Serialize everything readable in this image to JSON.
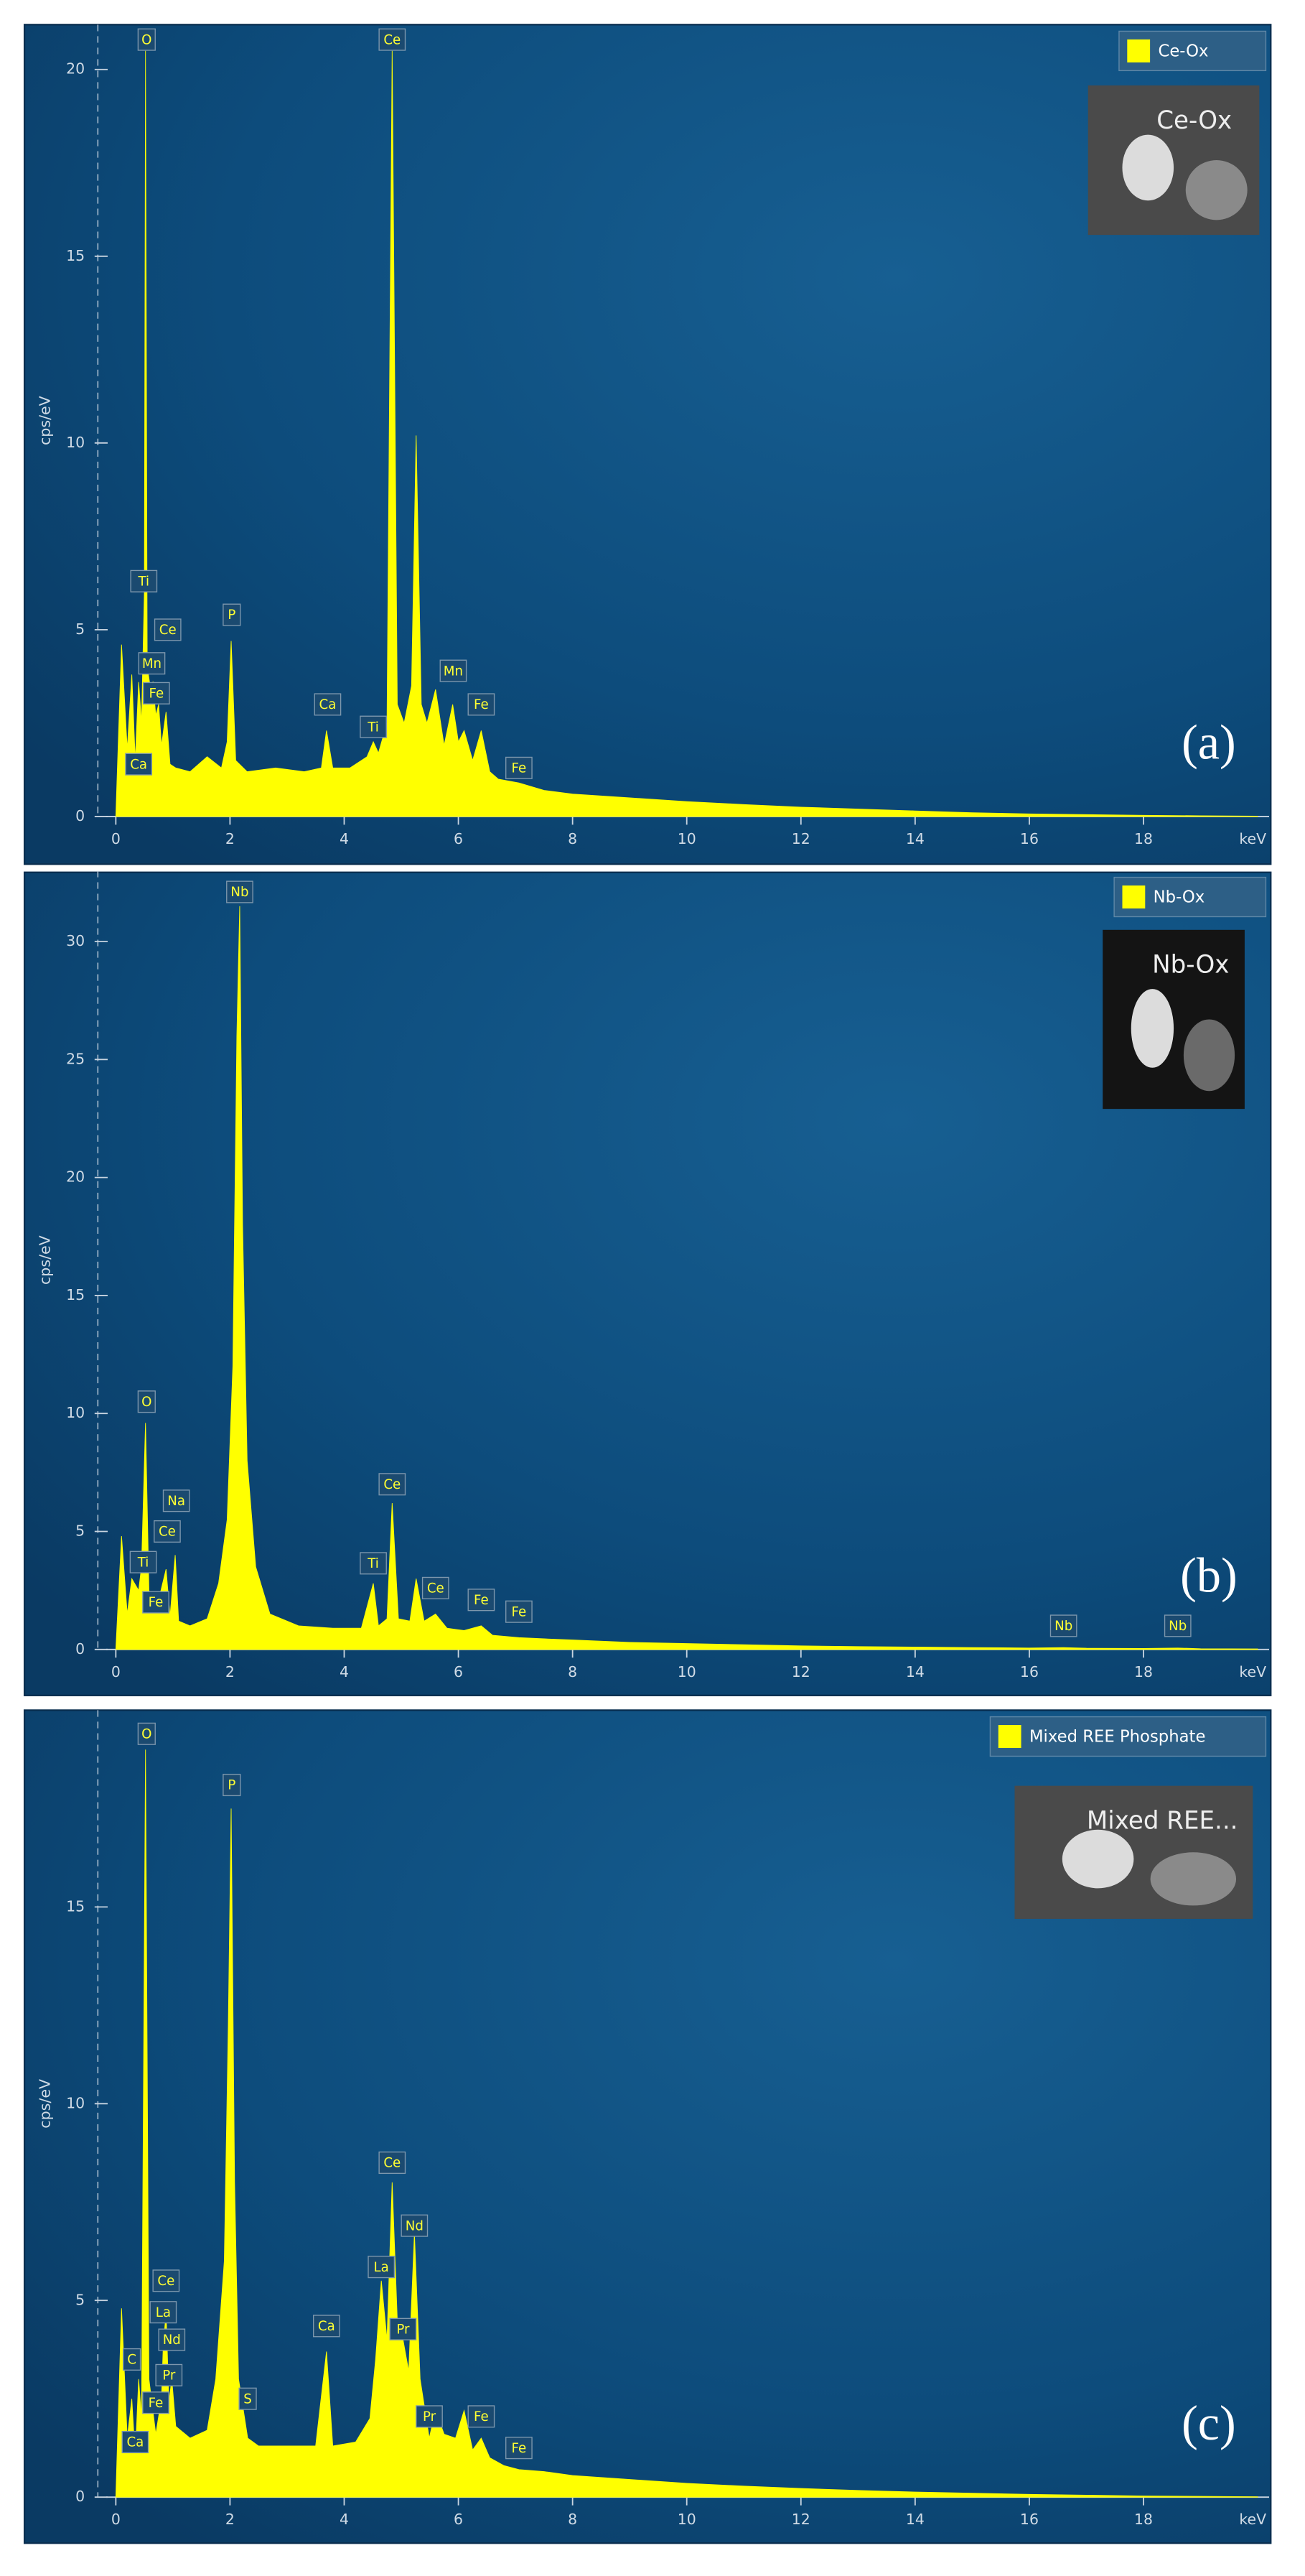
{
  "chart_data": [
    {
      "type": "area",
      "panel_label": "(a)",
      "y_label": "cps/eV",
      "x_label": "keV",
      "inset_label": "Ce-Ox",
      "xlim": [
        0,
        20
      ],
      "ylim": [
        0,
        21.2
      ],
      "xticks": [
        0,
        2,
        4,
        6,
        8,
        10,
        12,
        14,
        16,
        18
      ],
      "yticks": [
        0,
        5,
        10,
        15,
        20
      ],
      "x": [
        0,
        0.1,
        0.2,
        0.28,
        0.34,
        0.4,
        0.45,
        0.5,
        0.52,
        0.55,
        0.6,
        0.65,
        0.7,
        0.75,
        0.8,
        0.88,
        0.95,
        1.05,
        1.3,
        1.6,
        1.85,
        1.95,
        2.02,
        2.1,
        2.3,
        2.8,
        3.3,
        3.6,
        3.69,
        3.8,
        4.1,
        4.4,
        4.51,
        4.6,
        4.75,
        4.84,
        4.93,
        5.05,
        5.18,
        5.26,
        5.35,
        5.45,
        5.6,
        5.75,
        5.9,
        6.0,
        6.1,
        6.25,
        6.4,
        6.55,
        6.7,
        7.06,
        7.5,
        8,
        9,
        10,
        11,
        12,
        13,
        14,
        15,
        16,
        17,
        18,
        19,
        20
      ],
      "series": [
        {
          "name": "Ce-Ox",
          "color": "#ffff00",
          "values": [
            0,
            4.6,
            1.8,
            3.8,
            1.5,
            3.6,
            2.5,
            6,
            20.5,
            4,
            3.5,
            3.6,
            2.7,
            3,
            1.9,
            2.8,
            1.4,
            1.3,
            1.2,
            1.6,
            1.3,
            2,
            4.7,
            1.5,
            1.2,
            1.3,
            1.2,
            1.3,
            2.3,
            1.3,
            1.3,
            1.6,
            2,
            1.7,
            2.5,
            20.5,
            3,
            2.5,
            3.5,
            10.2,
            3,
            2.5,
            3.4,
            1.9,
            3,
            2,
            2.3,
            1.5,
            2.3,
            1.2,
            1.0,
            0.9,
            0.7,
            0.6,
            0.5,
            0.4,
            0.32,
            0.25,
            0.2,
            0.15,
            0.1,
            0.07,
            0.05,
            0.03,
            0.02,
            0.01
          ]
        }
      ],
      "annotations": [
        {
          "text": "O",
          "x": 0.54,
          "y": 20.8
        },
        {
          "text": "Ce",
          "x": 4.84,
          "y": 20.8
        },
        {
          "text": "Ti",
          "x": 0.49,
          "y": 6.3
        },
        {
          "text": "Ce",
          "x": 0.91,
          "y": 5.0
        },
        {
          "text": "Mn",
          "x": 0.63,
          "y": 4.1
        },
        {
          "text": "Fe",
          "x": 0.71,
          "y": 3.3
        },
        {
          "text": "Ca",
          "x": 0.4,
          "y": 1.4
        },
        {
          "text": "P",
          "x": 2.03,
          "y": 5.4
        },
        {
          "text": "Ca",
          "x": 3.71,
          "y": 3.0
        },
        {
          "text": "Ti",
          "x": 4.51,
          "y": 2.4
        },
        {
          "text": "Mn",
          "x": 5.91,
          "y": 3.9
        },
        {
          "text": "Fe",
          "x": 6.4,
          "y": 3.0
        },
        {
          "text": "Fe",
          "x": 7.06,
          "y": 1.3
        }
      ]
    },
    {
      "type": "area",
      "panel_label": "(b)",
      "y_label": "cps/eV",
      "x_label": "keV",
      "inset_label": "Nb-Ox",
      "xlim": [
        0,
        20
      ],
      "ylim": [
        0,
        33
      ],
      "xticks": [
        0,
        2,
        4,
        6,
        8,
        10,
        12,
        14,
        16,
        18
      ],
      "yticks": [
        0,
        5,
        10,
        15,
        20,
        25,
        30
      ],
      "x": [
        0,
        0.1,
        0.2,
        0.28,
        0.4,
        0.45,
        0.52,
        0.58,
        0.7,
        0.88,
        0.95,
        1.04,
        1.1,
        1.3,
        1.6,
        1.8,
        1.95,
        2.05,
        2.12,
        2.17,
        2.22,
        2.3,
        2.45,
        2.7,
        3.2,
        3.8,
        4.3,
        4.51,
        4.6,
        4.75,
        4.84,
        4.95,
        5.15,
        5.26,
        5.4,
        5.6,
        5.8,
        6.1,
        6.4,
        6.6,
        7.06,
        7.5,
        8,
        9,
        10,
        11,
        12,
        13,
        14,
        15,
        16,
        16.6,
        17,
        18,
        18.6,
        19,
        20
      ],
      "series": [
        {
          "name": "Nb-Ox",
          "color": "#ffff00",
          "values": [
            0,
            4.8,
            1.5,
            3.0,
            2.5,
            3.5,
            9.6,
            2.5,
            1.6,
            3.4,
            1.4,
            4.0,
            1.2,
            1.0,
            1.3,
            2.8,
            5.5,
            12,
            26,
            31.5,
            18,
            8,
            3.5,
            1.5,
            1.0,
            0.9,
            0.9,
            2.8,
            1.0,
            1.3,
            6.2,
            1.3,
            1.2,
            3.0,
            1.2,
            1.5,
            0.9,
            0.8,
            1.0,
            0.6,
            0.5,
            0.45,
            0.4,
            0.3,
            0.25,
            0.2,
            0.15,
            0.12,
            0.1,
            0.08,
            0.06,
            0.08,
            0.05,
            0.04,
            0.06,
            0.03,
            0.02
          ]
        }
      ],
      "annotations": [
        {
          "text": "Nb",
          "x": 2.17,
          "y": 32.1
        },
        {
          "text": "O",
          "x": 0.54,
          "y": 10.5
        },
        {
          "text": "Na",
          "x": 1.06,
          "y": 6.3
        },
        {
          "text": "Ce",
          "x": 0.9,
          "y": 5.0
        },
        {
          "text": "Ti",
          "x": 0.48,
          "y": 3.7
        },
        {
          "text": "Fe",
          "x": 0.7,
          "y": 2.0
        },
        {
          "text": "Ce",
          "x": 4.84,
          "y": 7.0
        },
        {
          "text": "Ti",
          "x": 4.51,
          "y": 3.65
        },
        {
          "text": "Ce",
          "x": 5.6,
          "y": 2.6
        },
        {
          "text": "Fe",
          "x": 6.4,
          "y": 2.1
        },
        {
          "text": "Fe",
          "x": 7.06,
          "y": 1.6
        },
        {
          "text": "Nb",
          "x": 16.6,
          "y": 1.0
        },
        {
          "text": "Nb",
          "x": 18.6,
          "y": 1.0
        }
      ]
    },
    {
      "type": "area",
      "panel_label": "(c)",
      "y_label": "cps/eV",
      "x_label": "keV",
      "inset_label": "Mixed REE...",
      "xlim": [
        0,
        20
      ],
      "ylim": [
        0,
        20
      ],
      "xticks": [
        0,
        2,
        4,
        6,
        8,
        10,
        12,
        14,
        16,
        18
      ],
      "yticks": [
        0,
        5,
        10,
        15
      ],
      "x": [
        0,
        0.1,
        0.2,
        0.28,
        0.34,
        0.4,
        0.45,
        0.52,
        0.58,
        0.7,
        0.8,
        0.83,
        0.88,
        0.93,
        0.98,
        1.05,
        1.3,
        1.6,
        1.75,
        1.9,
        1.97,
        2.02,
        2.08,
        2.15,
        2.31,
        2.5,
        3.0,
        3.5,
        3.69,
        3.8,
        4.2,
        4.45,
        4.55,
        4.65,
        4.75,
        4.84,
        4.93,
        5.03,
        5.13,
        5.23,
        5.33,
        5.49,
        5.6,
        5.75,
        5.95,
        6.1,
        6.25,
        6.4,
        6.55,
        6.8,
        7.06,
        7.5,
        8,
        9,
        10,
        11,
        12,
        13,
        14,
        15,
        16,
        17,
        18,
        19,
        20
      ],
      "series": [
        {
          "name": "Mixed REE Phosphate",
          "color": "#ffff00",
          "values": [
            0,
            4.8,
            1.5,
            2.5,
            1.0,
            3.0,
            2.0,
            19.0,
            3.0,
            1.6,
            2.5,
            3.8,
            4.7,
            2.4,
            3.0,
            1.8,
            1.5,
            1.7,
            3.0,
            6,
            12,
            17.5,
            8,
            3,
            1.5,
            1.3,
            1.3,
            1.3,
            3.7,
            1.3,
            1.4,
            2,
            3.5,
            5.5,
            4,
            8.0,
            4.5,
            4.0,
            3.2,
            6.7,
            3.0,
            1.5,
            2.2,
            1.6,
            1.5,
            2.2,
            1.2,
            1.5,
            1.0,
            0.8,
            0.7,
            0.65,
            0.55,
            0.45,
            0.35,
            0.28,
            0.22,
            0.17,
            0.13,
            0.1,
            0.07,
            0.05,
            0.03,
            0.02,
            0.01
          ]
        }
      ],
      "annotations": [
        {
          "text": "O",
          "x": 0.54,
          "y": 19.4
        },
        {
          "text": "P",
          "x": 2.03,
          "y": 18.1
        },
        {
          "text": "Ce",
          "x": 4.84,
          "y": 8.5
        },
        {
          "text": "Nd",
          "x": 5.23,
          "y": 6.9
        },
        {
          "text": "La",
          "x": 4.65,
          "y": 5.85
        },
        {
          "text": "Pr",
          "x": 5.03,
          "y": 4.27
        },
        {
          "text": "Ca",
          "x": 3.69,
          "y": 4.35
        },
        {
          "text": "S",
          "x": 2.31,
          "y": 2.5
        },
        {
          "text": "Ce",
          "x": 0.88,
          "y": 5.5
        },
        {
          "text": "La",
          "x": 0.83,
          "y": 4.7
        },
        {
          "text": "Nd",
          "x": 0.98,
          "y": 4.0
        },
        {
          "text": "Pr",
          "x": 0.93,
          "y": 3.1
        },
        {
          "text": "C",
          "x": 0.28,
          "y": 3.5
        },
        {
          "text": "Fe",
          "x": 0.7,
          "y": 2.4
        },
        {
          "text": "Ca",
          "x": 0.34,
          "y": 1.4
        },
        {
          "text": "Pr",
          "x": 5.49,
          "y": 2.05
        },
        {
          "text": "Fe",
          "x": 6.4,
          "y": 2.05
        },
        {
          "text": "Fe",
          "x": 7.06,
          "y": 1.25
        }
      ]
    }
  ]
}
